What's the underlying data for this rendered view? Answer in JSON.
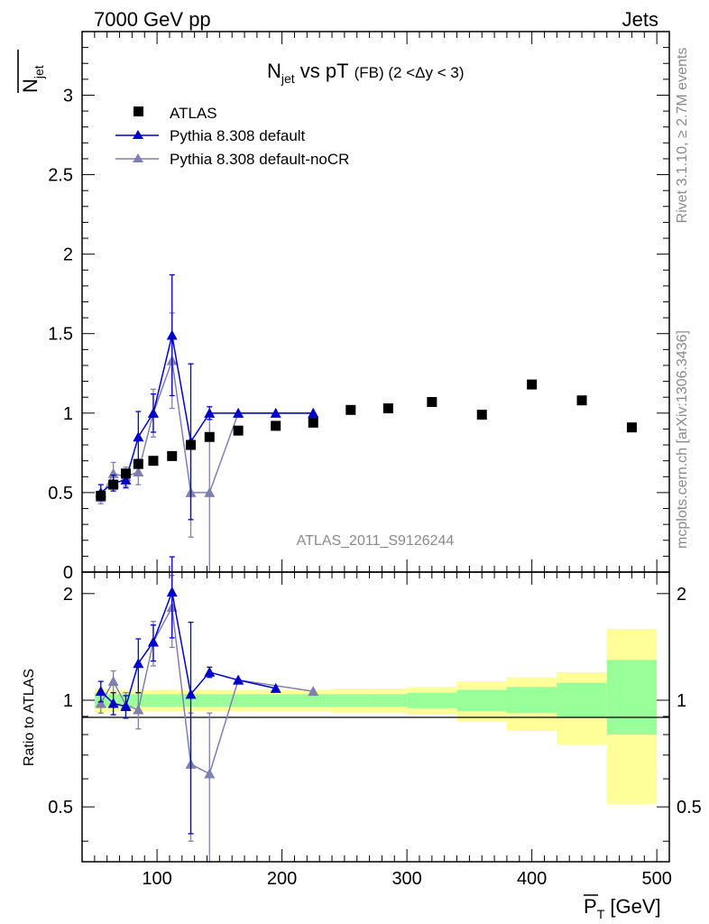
{
  "header": {
    "left_label": "7000 GeV pp",
    "right_label": "Jets"
  },
  "side_labels": {
    "rivet": "Rivet 3.1.10, ≥ 2.7M events",
    "mcplots": "mcplots.cern.ch [arXiv:1306.3436]"
  },
  "watermark": "ATLAS_2011_S9126244",
  "colors": {
    "atlas": "#000000",
    "default": "#0000cc",
    "nocr": "#8080b0",
    "band_inner": "#99ff99",
    "band_outer": "#ffff99"
  },
  "chart_data": [
    {
      "id": "main",
      "type": "scatter",
      "title": {
        "main": "N",
        "sub": "jet",
        "rest": " vs pT",
        "small": "(FB) (2 <Δy < 3)"
      },
      "ylabel": {
        "main": "N",
        "sub": "jet"
      },
      "xlim": [
        40,
        510
      ],
      "ylim": [
        0,
        3.4
      ],
      "yticks": [
        "0",
        "0.5",
        "1",
        "1.5",
        "2",
        "2.5",
        "3"
      ],
      "legend_position": "top-left",
      "series": [
        {
          "name": "ATLAS",
          "marker": "square",
          "x": [
            55,
            65,
            75,
            85,
            97,
            112,
            127,
            142,
            165,
            195,
            225,
            255,
            285,
            320,
            360,
            400,
            440,
            480
          ],
          "y": [
            0.48,
            0.55,
            0.62,
            0.68,
            0.7,
            0.73,
            0.8,
            0.85,
            0.89,
            0.92,
            0.94,
            1.02,
            1.03,
            1.07,
            0.99,
            1.18,
            1.08,
            0.91
          ]
        },
        {
          "name": "Pythia 8.308 default",
          "marker": "triangle",
          "x": [
            55,
            65,
            75,
            85,
            97,
            112,
            127,
            142,
            165,
            195,
            225
          ],
          "y": [
            0.5,
            0.56,
            0.58,
            0.85,
            1.0,
            1.49,
            0.82,
            1.0,
            1.0,
            1.0,
            1.0
          ],
          "err": [
            0.05,
            0.05,
            0.05,
            0.16,
            0.12,
            0.38,
            0.49,
            0.04,
            0.0,
            0.0,
            0.0
          ]
        },
        {
          "name": "Pythia 8.308 default-noCR",
          "marker": "triangle",
          "x": [
            55,
            65,
            75,
            85,
            97,
            112,
            127,
            142,
            165,
            225
          ],
          "y": [
            0.47,
            0.62,
            0.6,
            0.63,
            1.0,
            1.33,
            0.5,
            0.5,
            1.0,
            1.0
          ],
          "err": [
            0.04,
            0.07,
            0.06,
            0.08,
            0.15,
            0.3,
            0.28,
            0.5,
            0.0,
            0.0
          ]
        }
      ]
    },
    {
      "id": "ratio",
      "type": "scatter",
      "ylabel": "Ratio to ATLAS",
      "xlabel": {
        "main": "P",
        "sub": "T",
        "unit": " [GeV]"
      },
      "xlim": [
        40,
        510
      ],
      "xticks": [
        "100",
        "200",
        "300",
        "400",
        "500"
      ],
      "ylim": [
        0.35,
        2.3
      ],
      "yticks": [
        "0.5",
        "1",
        "2"
      ],
      "bands": [
        {
          "x0": 50,
          "x1": 60,
          "inner": [
            0.95,
            1.05
          ],
          "outer": [
            0.92,
            1.08
          ]
        },
        {
          "x0": 60,
          "x1": 70,
          "inner": [
            0.96,
            1.04
          ],
          "outer": [
            0.93,
            1.07
          ]
        },
        {
          "x0": 70,
          "x1": 80,
          "inner": [
            0.96,
            1.04
          ],
          "outer": [
            0.93,
            1.07
          ]
        },
        {
          "x0": 80,
          "x1": 90,
          "inner": [
            0.96,
            1.04
          ],
          "outer": [
            0.93,
            1.07
          ]
        },
        {
          "x0": 90,
          "x1": 105,
          "inner": [
            0.96,
            1.04
          ],
          "outer": [
            0.93,
            1.07
          ]
        },
        {
          "x0": 105,
          "x1": 120,
          "inner": [
            0.96,
            1.04
          ],
          "outer": [
            0.93,
            1.07
          ]
        },
        {
          "x0": 120,
          "x1": 135,
          "inner": [
            0.96,
            1.04
          ],
          "outer": [
            0.93,
            1.07
          ]
        },
        {
          "x0": 135,
          "x1": 150,
          "inner": [
            0.96,
            1.04
          ],
          "outer": [
            0.93,
            1.07
          ]
        },
        {
          "x0": 150,
          "x1": 180,
          "inner": [
            0.96,
            1.04
          ],
          "outer": [
            0.93,
            1.07
          ]
        },
        {
          "x0": 180,
          "x1": 210,
          "inner": [
            0.96,
            1.04
          ],
          "outer": [
            0.93,
            1.07
          ]
        },
        {
          "x0": 210,
          "x1": 240,
          "inner": [
            0.96,
            1.04
          ],
          "outer": [
            0.93,
            1.07
          ]
        },
        {
          "x0": 240,
          "x1": 270,
          "inner": [
            0.96,
            1.04
          ],
          "outer": [
            0.92,
            1.08
          ]
        },
        {
          "x0": 270,
          "x1": 300,
          "inner": [
            0.96,
            1.04
          ],
          "outer": [
            0.92,
            1.08
          ]
        },
        {
          "x0": 300,
          "x1": 340,
          "inner": [
            0.95,
            1.05
          ],
          "outer": [
            0.91,
            1.09
          ]
        },
        {
          "x0": 340,
          "x1": 380,
          "inner": [
            0.93,
            1.07
          ],
          "outer": [
            0.87,
            1.13
          ]
        },
        {
          "x0": 380,
          "x1": 420,
          "inner": [
            0.92,
            1.09
          ],
          "outer": [
            0.82,
            1.16
          ]
        },
        {
          "x0": 420,
          "x1": 460,
          "inner": [
            0.89,
            1.12
          ],
          "outer": [
            0.75,
            1.2
          ]
        },
        {
          "x0": 460,
          "x1": 500,
          "inner": [
            0.8,
            1.3
          ],
          "outer": [
            0.51,
            1.59
          ]
        }
      ],
      "series": [
        {
          "name": "Pythia 8.308 default",
          "x": [
            55,
            65,
            75,
            85,
            97,
            112,
            127,
            142,
            165,
            195
          ],
          "y": [
            1.06,
            0.98,
            0.96,
            1.27,
            1.46,
            2.02,
            1.04,
            1.2,
            1.14,
            1.08
          ],
          "err": [
            0.07,
            0.07,
            0.07,
            0.22,
            0.17,
            0.52,
            0.62,
            0.04,
            0.0,
            0.0
          ]
        },
        {
          "name": "Pythia 8.308 default-noCR",
          "x": [
            55,
            65,
            75,
            85,
            97,
            112,
            127,
            142,
            165,
            225
          ],
          "y": [
            0.98,
            1.13,
            0.97,
            0.94,
            1.46,
            1.83,
            0.66,
            0.62,
            1.14,
            1.06
          ],
          "err": [
            0.06,
            0.08,
            0.08,
            0.11,
            0.21,
            0.42,
            0.26,
            0.3,
            0.0,
            0.0
          ]
        }
      ]
    }
  ]
}
